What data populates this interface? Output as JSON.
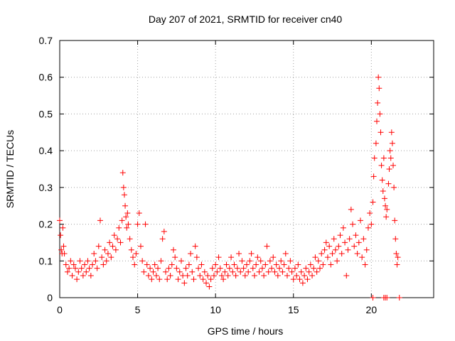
{
  "chart_data": {
    "type": "scatter",
    "title": "Day 207 of 2021, SRMTID for receiver cn40",
    "xlabel": "GPS time / hours",
    "ylabel": "SRMTID / TECUs",
    "xlim": [
      0,
      24
    ],
    "ylim": [
      0,
      0.7
    ],
    "xticks": [
      0,
      5,
      10,
      15,
      20
    ],
    "yticks": [
      0,
      0.1,
      0.2,
      0.3,
      0.4,
      0.5,
      0.6,
      0.7
    ],
    "xtick_labels": [
      "0",
      "5",
      "10",
      "15",
      "20"
    ],
    "ytick_labels": [
      "0",
      "0.1",
      "0.2",
      "0.3",
      "0.4",
      "0.5",
      "0.6",
      "0.7"
    ],
    "grid": true,
    "marker": "+",
    "color": "#ff0000",
    "series": [
      {
        "name": "SRMTID",
        "points": [
          [
            0.0,
            0.21
          ],
          [
            0.05,
            0.17
          ],
          [
            0.1,
            0.13
          ],
          [
            0.15,
            0.12
          ],
          [
            0.2,
            0.19
          ],
          [
            0.25,
            0.14
          ],
          [
            0.3,
            0.12
          ],
          [
            0.4,
            0.09
          ],
          [
            0.5,
            0.07
          ],
          [
            0.6,
            0.08
          ],
          [
            0.7,
            0.1
          ],
          [
            0.8,
            0.06
          ],
          [
            0.9,
            0.09
          ],
          [
            1.0,
            0.08
          ],
          [
            1.1,
            0.05
          ],
          [
            1.2,
            0.07
          ],
          [
            1.3,
            0.1
          ],
          [
            1.4,
            0.08
          ],
          [
            1.5,
            0.06
          ],
          [
            1.6,
            0.09
          ],
          [
            1.7,
            0.07
          ],
          [
            1.8,
            0.1
          ],
          [
            1.9,
            0.08
          ],
          [
            2.0,
            0.06
          ],
          [
            2.1,
            0.09
          ],
          [
            2.2,
            0.12
          ],
          [
            2.3,
            0.1
          ],
          [
            2.4,
            0.08
          ],
          [
            2.5,
            0.14
          ],
          [
            2.6,
            0.21
          ],
          [
            2.7,
            0.11
          ],
          [
            2.8,
            0.09
          ],
          [
            2.9,
            0.13
          ],
          [
            3.0,
            0.1
          ],
          [
            3.1,
            0.12
          ],
          [
            3.2,
            0.15
          ],
          [
            3.3,
            0.11
          ],
          [
            3.4,
            0.14
          ],
          [
            3.5,
            0.17
          ],
          [
            3.6,
            0.13
          ],
          [
            3.7,
            0.16
          ],
          [
            3.8,
            0.19
          ],
          [
            3.9,
            0.15
          ],
          [
            4.0,
            0.21
          ],
          [
            4.05,
            0.34
          ],
          [
            4.1,
            0.3
          ],
          [
            4.15,
            0.28
          ],
          [
            4.2,
            0.25
          ],
          [
            4.25,
            0.22
          ],
          [
            4.3,
            0.19
          ],
          [
            4.35,
            0.23
          ],
          [
            4.4,
            0.2
          ],
          [
            4.5,
            0.16
          ],
          [
            4.6,
            0.13
          ],
          [
            4.7,
            0.11
          ],
          [
            4.8,
            0.09
          ],
          [
            4.9,
            0.12
          ],
          [
            5.0,
            0.2
          ],
          [
            5.1,
            0.23
          ],
          [
            5.2,
            0.14
          ],
          [
            5.3,
            0.1
          ],
          [
            5.4,
            0.07
          ],
          [
            5.5,
            0.2
          ],
          [
            5.6,
            0.09
          ],
          [
            5.7,
            0.06
          ],
          [
            5.8,
            0.08
          ],
          [
            5.9,
            0.05
          ],
          [
            6.0,
            0.07
          ],
          [
            6.1,
            0.09
          ],
          [
            6.2,
            0.06
          ],
          [
            6.3,
            0.08
          ],
          [
            6.4,
            0.05
          ],
          [
            6.5,
            0.1
          ],
          [
            6.6,
            0.16
          ],
          [
            6.7,
            0.18
          ],
          [
            6.8,
            0.07
          ],
          [
            6.9,
            0.05
          ],
          [
            7.0,
            0.08
          ],
          [
            7.1,
            0.06
          ],
          [
            7.2,
            0.09
          ],
          [
            7.3,
            0.13
          ],
          [
            7.4,
            0.11
          ],
          [
            7.5,
            0.08
          ],
          [
            7.6,
            0.05
          ],
          [
            7.7,
            0.07
          ],
          [
            7.8,
            0.1
          ],
          [
            7.9,
            0.06
          ],
          [
            8.0,
            0.04
          ],
          [
            8.1,
            0.08
          ],
          [
            8.2,
            0.06
          ],
          [
            8.3,
            0.09
          ],
          [
            8.4,
            0.12
          ],
          [
            8.5,
            0.07
          ],
          [
            8.6,
            0.05
          ],
          [
            8.7,
            0.14
          ],
          [
            8.8,
            0.11
          ],
          [
            8.9,
            0.08
          ],
          [
            9.0,
            0.06
          ],
          [
            9.1,
            0.09
          ],
          [
            9.2,
            0.05
          ],
          [
            9.3,
            0.07
          ],
          [
            9.4,
            0.04
          ],
          [
            9.5,
            0.06
          ],
          [
            9.6,
            0.03
          ],
          [
            9.7,
            0.05
          ],
          [
            9.8,
            0.08
          ],
          [
            9.9,
            0.06
          ],
          [
            10.0,
            0.09
          ],
          [
            10.1,
            0.07
          ],
          [
            10.2,
            0.11
          ],
          [
            10.3,
            0.08
          ],
          [
            10.4,
            0.06
          ],
          [
            10.5,
            0.05
          ],
          [
            10.6,
            0.07
          ],
          [
            10.7,
            0.09
          ],
          [
            10.8,
            0.06
          ],
          [
            10.9,
            0.08
          ],
          [
            11.0,
            0.11
          ],
          [
            11.1,
            0.07
          ],
          [
            11.2,
            0.09
          ],
          [
            11.3,
            0.06
          ],
          [
            11.4,
            0.08
          ],
          [
            11.5,
            0.12
          ],
          [
            11.6,
            0.07
          ],
          [
            11.7,
            0.1
          ],
          [
            11.8,
            0.08
          ],
          [
            11.9,
            0.06
          ],
          [
            12.0,
            0.09
          ],
          [
            12.1,
            0.07
          ],
          [
            12.2,
            0.1
          ],
          [
            12.3,
            0.12
          ],
          [
            12.4,
            0.08
          ],
          [
            12.5,
            0.06
          ],
          [
            12.6,
            0.09
          ],
          [
            12.7,
            0.11
          ],
          [
            12.8,
            0.07
          ],
          [
            12.9,
            0.1
          ],
          [
            13.0,
            0.08
          ],
          [
            13.1,
            0.06
          ],
          [
            13.2,
            0.09
          ],
          [
            13.3,
            0.14
          ],
          [
            13.4,
            0.07
          ],
          [
            13.5,
            0.1
          ],
          [
            13.6,
            0.08
          ],
          [
            13.7,
            0.11
          ],
          [
            13.8,
            0.07
          ],
          [
            13.9,
            0.09
          ],
          [
            14.0,
            0.06
          ],
          [
            14.1,
            0.08
          ],
          [
            14.2,
            0.1
          ],
          [
            14.3,
            0.07
          ],
          [
            14.4,
            0.09
          ],
          [
            14.5,
            0.12
          ],
          [
            14.6,
            0.06
          ],
          [
            14.7,
            0.08
          ],
          [
            14.8,
            0.1
          ],
          [
            14.9,
            0.07
          ],
          [
            15.0,
            0.05
          ],
          [
            15.1,
            0.08
          ],
          [
            15.2,
            0.06
          ],
          [
            15.3,
            0.09
          ],
          [
            15.4,
            0.05
          ],
          [
            15.5,
            0.07
          ],
          [
            15.6,
            0.04
          ],
          [
            15.7,
            0.06
          ],
          [
            15.8,
            0.08
          ],
          [
            15.9,
            0.05
          ],
          [
            16.0,
            0.07
          ],
          [
            16.1,
            0.09
          ],
          [
            16.2,
            0.06
          ],
          [
            16.3,
            0.08
          ],
          [
            16.4,
            0.11
          ],
          [
            16.5,
            0.07
          ],
          [
            16.6,
            0.1
          ],
          [
            16.7,
            0.08
          ],
          [
            16.8,
            0.12
          ],
          [
            16.9,
            0.09
          ],
          [
            17.0,
            0.13
          ],
          [
            17.1,
            0.15
          ],
          [
            17.2,
            0.11
          ],
          [
            17.3,
            0.14
          ],
          [
            17.4,
            0.09
          ],
          [
            17.5,
            0.12
          ],
          [
            17.6,
            0.16
          ],
          [
            17.7,
            0.13
          ],
          [
            17.8,
            0.1
          ],
          [
            17.9,
            0.14
          ],
          [
            18.0,
            0.17
          ],
          [
            18.1,
            0.12
          ],
          [
            18.2,
            0.19
          ],
          [
            18.3,
            0.15
          ],
          [
            18.4,
            0.06
          ],
          [
            18.5,
            0.13
          ],
          [
            18.6,
            0.16
          ],
          [
            18.7,
            0.24
          ],
          [
            18.8,
            0.2
          ],
          [
            18.9,
            0.14
          ],
          [
            19.0,
            0.17
          ],
          [
            19.1,
            0.12
          ],
          [
            19.2,
            0.15
          ],
          [
            19.3,
            0.21
          ],
          [
            19.4,
            0.11
          ],
          [
            19.5,
            0.16
          ],
          [
            19.6,
            0.09
          ],
          [
            19.7,
            0.13
          ],
          [
            19.8,
            0.19
          ],
          [
            19.9,
            0.23
          ],
          [
            20.0,
            0.2
          ],
          [
            20.1,
            0.26
          ],
          [
            20.15,
            0.33
          ],
          [
            20.2,
            0.38
          ],
          [
            20.3,
            0.42
          ],
          [
            20.35,
            0.48
          ],
          [
            20.4,
            0.53
          ],
          [
            20.45,
            0.6
          ],
          [
            20.5,
            0.57
          ],
          [
            20.55,
            0.5
          ],
          [
            20.6,
            0.45
          ],
          [
            20.65,
            0.36
          ],
          [
            20.7,
            0.32
          ],
          [
            20.75,
            0.29
          ],
          [
            20.8,
            0.38
          ],
          [
            20.85,
            0.27
          ],
          [
            20.9,
            0.25
          ],
          [
            20.95,
            0.22
          ],
          [
            21.0,
            0.24
          ],
          [
            21.1,
            0.31
          ],
          [
            21.15,
            0.35
          ],
          [
            21.2,
            0.4
          ],
          [
            21.25,
            0.38
          ],
          [
            21.3,
            0.45
          ],
          [
            21.35,
            0.42
          ],
          [
            21.4,
            0.36
          ],
          [
            21.45,
            0.3
          ],
          [
            21.5,
            0.21
          ],
          [
            21.55,
            0.16
          ],
          [
            21.6,
            0.12
          ],
          [
            21.65,
            0.09
          ],
          [
            21.7,
            0.11
          ],
          [
            20.1,
            0.0
          ],
          [
            20.8,
            0.0
          ],
          [
            20.9,
            0.0
          ],
          [
            21.0,
            0.0
          ],
          [
            21.8,
            0.0
          ]
        ]
      }
    ]
  }
}
